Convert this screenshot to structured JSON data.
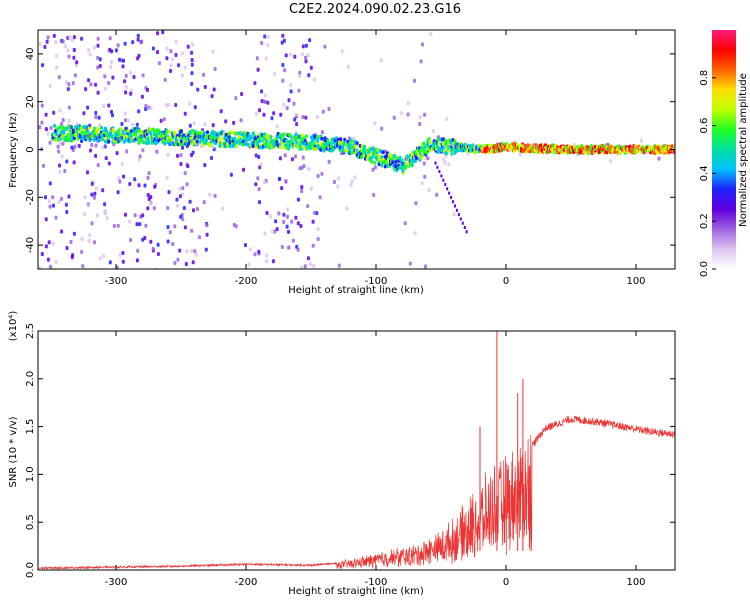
{
  "title": "C2E2.2024.090.02.23.G16",
  "chart_data": [
    {
      "type": "heatmap",
      "xlabel": "Height of straight line (km)",
      "ylabel": "Frequency (Hz)",
      "xlim": [
        -360,
        130
      ],
      "ylim": [
        -50,
        50
      ],
      "x_ticks": [
        -300,
        -200,
        -100,
        0,
        100
      ],
      "y_ticks": [
        -40,
        -20,
        0,
        20,
        40
      ],
      "colorbar": {
        "label": "Normalized spectral amplitude",
        "range": [
          0,
          1
        ],
        "ticks": [
          0.0,
          0.2,
          0.4,
          0.6,
          0.8
        ],
        "colors": [
          "#ffffff",
          "#dcc6f0",
          "#a060e0",
          "#6000e0",
          "#2020ff",
          "#00c0ff",
          "#00e0a0",
          "#20ff20",
          "#c0ff00",
          "#ffe000",
          "#ff6000",
          "#ff0000",
          "#ff1a80"
        ]
      },
      "ridge": [
        {
          "x": -350,
          "y": 7
        },
        {
          "x": -300,
          "y": 6
        },
        {
          "x": -250,
          "y": 5
        },
        {
          "x": -200,
          "y": 4
        },
        {
          "x": -150,
          "y": 3
        },
        {
          "x": -120,
          "y": 1
        },
        {
          "x": -100,
          "y": -3
        },
        {
          "x": -80,
          "y": -7
        },
        {
          "x": -60,
          "y": 2
        },
        {
          "x": -40,
          "y": 1
        },
        {
          "x": -20,
          "y": 0
        },
        {
          "x": 0,
          "y": 1
        },
        {
          "x": 50,
          "y": 0
        },
        {
          "x": 100,
          "y": 0
        },
        {
          "x": 130,
          "y": 0
        }
      ]
    },
    {
      "type": "line",
      "xlabel": "Height of straight line (km)",
      "ylabel": "SNR (10 * v/v)",
      "scale_label": "(x10⁴)",
      "xlim": [
        -360,
        130
      ],
      "ylim": [
        0.0,
        2.5
      ],
      "x_ticks": [
        -300,
        -200,
        -100,
        0,
        100
      ],
      "y_ticks": [
        0.0,
        0.5,
        1.0,
        1.5,
        2.0,
        2.5
      ],
      "line_color": "#ee3333",
      "envelope": [
        {
          "x": -360,
          "y": 0.02
        },
        {
          "x": -300,
          "y": 0.03
        },
        {
          "x": -250,
          "y": 0.04
        },
        {
          "x": -200,
          "y": 0.06
        },
        {
          "x": -150,
          "y": 0.05
        },
        {
          "x": -130,
          "y": 0.07
        },
        {
          "x": -110,
          "y": 0.12
        },
        {
          "x": -90,
          "y": 0.18
        },
        {
          "x": -70,
          "y": 0.22
        },
        {
          "x": -50,
          "y": 0.35
        },
        {
          "x": -40,
          "y": 0.45
        },
        {
          "x": -30,
          "y": 0.6
        },
        {
          "x": -20,
          "y": 0.75
        },
        {
          "x": -10,
          "y": 0.9
        },
        {
          "x": 0,
          "y": 1.0
        },
        {
          "x": 10,
          "y": 1.1
        },
        {
          "x": 20,
          "y": 1.3
        },
        {
          "x": 30,
          "y": 1.48
        },
        {
          "x": 50,
          "y": 1.58
        },
        {
          "x": 70,
          "y": 1.55
        },
        {
          "x": 90,
          "y": 1.5
        },
        {
          "x": 110,
          "y": 1.45
        },
        {
          "x": 130,
          "y": 1.42
        }
      ],
      "spikes": [
        {
          "x": -7,
          "y": 2.5
        },
        {
          "x": 13,
          "y": 2.0
        },
        {
          "x": -20,
          "y": 1.5
        },
        {
          "x": 9,
          "y": 1.85
        }
      ]
    }
  ]
}
